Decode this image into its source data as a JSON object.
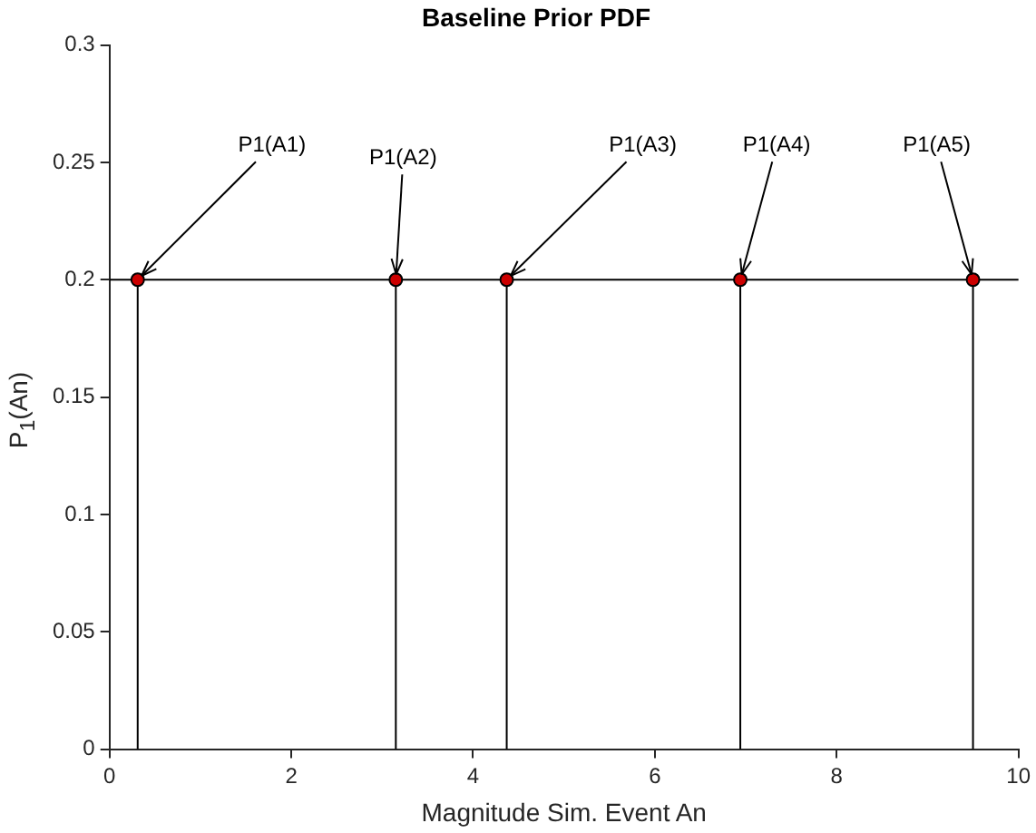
{
  "chart_data": {
    "type": "lollipop",
    "title": "Baseline Prior PDF",
    "xlabel": "Magnitude Sim. Event An",
    "ylabel": "P$_{1}$(An)",
    "series": [
      {
        "color": "#cc0000",
        "x": [
          0.31,
          3.15,
          4.37,
          6.94,
          9.5
        ],
        "values": [
          0.2,
          0.2,
          0.2,
          0.2,
          0.2
        ]
      }
    ],
    "xlim": [
      0,
      10
    ],
    "xticks": [
      0,
      2,
      4,
      6,
      8,
      10
    ],
    "ylim": [
      0,
      0.3
    ],
    "yticks": [
      0,
      0.05,
      0.1,
      0.15,
      0.2,
      0.25,
      0.3
    ],
    "ref_lines": [
      {
        "axis": "y",
        "value": 0.2,
        "color": "#000000"
      }
    ],
    "annotations": [
      {
        "text": "P1(A1)",
        "x": 0.31,
        "y": 0.2
      },
      {
        "text": "P1(A2)",
        "x": 3.15,
        "y": 0.2
      },
      {
        "text": "P1(A3)",
        "x": 4.37,
        "y": 0.2
      },
      {
        "text": "P1(A4)",
        "x": 6.94,
        "y": 0.2
      },
      {
        "text": "P1(A5)",
        "x": 9.5,
        "y": 0.2
      }
    ],
    "grid": false,
    "legend": false,
    "marker": "circle"
  }
}
